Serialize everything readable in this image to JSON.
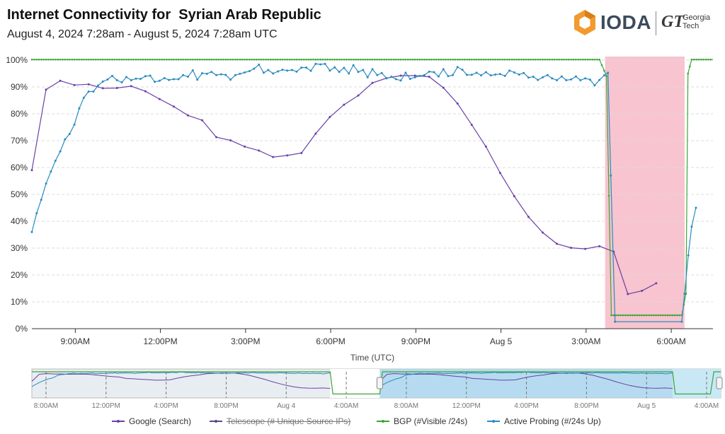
{
  "title": "Internet Connectivity for  Syrian Arab Republic",
  "subtitle": "August 4, 2024 7:28am - August 5, 2024 7:28am UTC",
  "logo": {
    "ioda": "IODA",
    "gt": "GT",
    "gt_name_1": "Georgia",
    "gt_name_2": "Tech"
  },
  "colors": {
    "google": "#6a3fa8",
    "telescope": "#5c4a82",
    "bgp": "#3ca535",
    "active_probing": "#2a8bc0",
    "outage_band": "#f7c4cf",
    "navigator_selection": "#a9d6ef"
  },
  "chart_data": {
    "type": "line",
    "title": "Internet Connectivity for  Syrian Arab Republic",
    "xlabel": "Time (UTC)",
    "ylabel": "",
    "ylim": [
      0,
      100
    ],
    "y_ticks": [
      "0%",
      "10%",
      "20%",
      "30%",
      "40%",
      "50%",
      "60%",
      "70%",
      "80%",
      "90%",
      "100%"
    ],
    "x_range_hours": [
      0,
      24
    ],
    "x_ticks": [
      {
        "h": 1.53,
        "label": "9:00AM"
      },
      {
        "h": 4.53,
        "label": "12:00PM"
      },
      {
        "h": 7.53,
        "label": "3:00PM"
      },
      {
        "h": 10.53,
        "label": "6:00PM"
      },
      {
        "h": 13.53,
        "label": "9:00PM"
      },
      {
        "h": 16.53,
        "label": "Aug 5"
      },
      {
        "h": 19.53,
        "label": "3:00AM"
      },
      {
        "h": 22.53,
        "label": "6:00AM"
      }
    ],
    "outage_band_hours": [
      20.2,
      23.0
    ],
    "grid": true,
    "legend": "bottom",
    "series": [
      {
        "key": "google",
        "name": "Google (Search)",
        "visible": true,
        "points": [
          [
            0.0,
            59
          ],
          [
            0.5,
            89
          ],
          [
            1.0,
            92.3
          ],
          [
            1.5,
            90.7
          ],
          [
            2.0,
            91
          ],
          [
            2.5,
            89.5
          ],
          [
            3.0,
            89.6
          ],
          [
            3.5,
            90.3
          ],
          [
            4.0,
            88.4
          ],
          [
            4.5,
            85.5
          ],
          [
            5.0,
            82.7
          ],
          [
            5.5,
            79.4
          ],
          [
            6.0,
            77.6
          ],
          [
            6.5,
            71.3
          ],
          [
            7.0,
            70.1
          ],
          [
            7.5,
            67.8
          ],
          [
            8.0,
            66.3
          ],
          [
            8.5,
            63.9
          ],
          [
            9.0,
            64.5
          ],
          [
            9.5,
            65.4
          ],
          [
            10.0,
            72.6
          ],
          [
            10.5,
            78.8
          ],
          [
            11.0,
            83.4
          ],
          [
            11.5,
            86.8
          ],
          [
            12.0,
            91.5
          ],
          [
            12.5,
            93.3
          ],
          [
            13.0,
            94.2
          ],
          [
            13.5,
            94.2
          ],
          [
            14.0,
            93.8
          ],
          [
            14.5,
            89.7
          ],
          [
            15.0,
            83.8
          ],
          [
            15.5,
            75.9
          ],
          [
            16.0,
            67.8
          ],
          [
            16.5,
            58
          ],
          [
            17.0,
            49.3
          ],
          [
            17.5,
            41.6
          ],
          [
            18.0,
            35.8
          ],
          [
            18.5,
            31.6
          ],
          [
            19.0,
            30.1
          ],
          [
            19.5,
            29.7
          ],
          [
            20.0,
            30.7
          ],
          [
            20.5,
            28.7
          ],
          [
            21.0,
            12.9
          ],
          [
            21.5,
            14.1
          ],
          [
            22.0,
            16.9
          ]
        ]
      },
      {
        "key": "telescope",
        "name": "Telescope (# Unique Source IPs)",
        "visible": false,
        "points": []
      },
      {
        "key": "bgp",
        "name": "BGP (#Visible /24s)",
        "visible": true,
        "points": [
          [
            0.0,
            100.2
          ],
          [
            20.0,
            100.2
          ],
          [
            20.25,
            94
          ],
          [
            20.42,
            5
          ],
          [
            22.9,
            5
          ],
          [
            23.05,
            13
          ],
          [
            23.12,
            95
          ],
          [
            23.25,
            100.2
          ],
          [
            24.0,
            100.2
          ]
        ]
      },
      {
        "key": "active_probing",
        "name": "Active Probing (#/24s Up)",
        "visible": true,
        "points": [
          [
            0.0,
            36
          ],
          [
            0.17,
            43
          ],
          [
            0.33,
            48
          ],
          [
            0.5,
            54
          ],
          [
            0.67,
            58.5
          ],
          [
            0.83,
            62.5
          ],
          [
            1.0,
            66
          ],
          [
            1.17,
            70.5
          ],
          [
            1.33,
            72.5
          ],
          [
            1.5,
            76
          ],
          [
            1.67,
            82
          ],
          [
            1.83,
            86
          ],
          [
            2.0,
            88.3
          ],
          [
            2.17,
            88.3
          ],
          [
            2.33,
            90.5
          ],
          [
            2.5,
            92
          ],
          [
            2.67,
            92.8
          ],
          [
            2.83,
            94.1
          ],
          [
            3.0,
            92.5
          ],
          [
            3.17,
            91.7
          ],
          [
            3.33,
            93.7
          ],
          [
            3.5,
            92.5
          ],
          [
            3.67,
            93.1
          ],
          [
            3.83,
            93
          ],
          [
            4.0,
            94
          ],
          [
            4.17,
            94.2
          ],
          [
            4.33,
            91.9
          ],
          [
            4.5,
            92.3
          ],
          [
            4.67,
            93.3
          ],
          [
            4.83,
            92.6
          ],
          [
            5.0,
            92.9
          ],
          [
            5.17,
            92.9
          ],
          [
            5.33,
            94.4
          ],
          [
            5.5,
            93.8
          ],
          [
            5.67,
            96.2
          ],
          [
            5.83,
            92.7
          ],
          [
            6.0,
            95.1
          ],
          [
            6.17,
            94.9
          ],
          [
            6.33,
            95.6
          ],
          [
            6.5,
            94.4
          ],
          [
            6.67,
            94.7
          ],
          [
            6.83,
            94.5
          ],
          [
            7.0,
            92.7
          ],
          [
            7.17,
            94.4
          ],
          [
            7.33,
            94.9
          ],
          [
            7.5,
            95.4
          ],
          [
            7.67,
            95.9
          ],
          [
            7.83,
            96.8
          ],
          [
            8.0,
            98.3
          ],
          [
            8.17,
            95.3
          ],
          [
            8.33,
            96.3
          ],
          [
            8.5,
            95
          ],
          [
            8.67,
            95.8
          ],
          [
            8.83,
            96.4
          ],
          [
            9.0,
            96.1
          ],
          [
            9.17,
            96.3
          ],
          [
            9.33,
            95.7
          ],
          [
            9.5,
            97.2
          ],
          [
            9.67,
            97.2
          ],
          [
            9.83,
            96
          ],
          [
            10.0,
            98.6
          ],
          [
            10.17,
            98.4
          ],
          [
            10.33,
            98.6
          ],
          [
            10.5,
            96.1
          ],
          [
            10.67,
            97.3
          ],
          [
            10.83,
            95.6
          ],
          [
            11.0,
            97.1
          ],
          [
            11.17,
            95
          ],
          [
            11.33,
            98.1
          ],
          [
            11.5,
            95.6
          ],
          [
            11.67,
            96.3
          ],
          [
            11.83,
            93.6
          ],
          [
            12.0,
            96.6
          ],
          [
            12.17,
            94.4
          ],
          [
            12.33,
            95.2
          ],
          [
            12.5,
            93.2
          ],
          [
            12.67,
            93.8
          ],
          [
            12.83,
            92.9
          ],
          [
            13.0,
            92.4
          ],
          [
            13.17,
            95.3
          ],
          [
            13.33,
            93
          ],
          [
            13.5,
            93.6
          ],
          [
            13.67,
            94.1
          ],
          [
            13.83,
            94.4
          ],
          [
            14.0,
            95.7
          ],
          [
            14.17,
            95.5
          ],
          [
            14.33,
            93.9
          ],
          [
            14.5,
            96.6
          ],
          [
            14.67,
            94
          ],
          [
            14.83,
            94.4
          ],
          [
            15.0,
            97.4
          ],
          [
            15.17,
            96.4
          ],
          [
            15.33,
            94.5
          ],
          [
            15.5,
            94.5
          ],
          [
            15.67,
            95.3
          ],
          [
            15.83,
            94.3
          ],
          [
            16.0,
            95.5
          ],
          [
            16.17,
            94.3
          ],
          [
            16.33,
            94.6
          ],
          [
            16.5,
            94.8
          ],
          [
            16.67,
            94.1
          ],
          [
            16.83,
            96.1
          ],
          [
            17.0,
            95.4
          ],
          [
            17.17,
            94.6
          ],
          [
            17.33,
            95.2
          ],
          [
            17.5,
            93.5
          ],
          [
            17.67,
            93.8
          ],
          [
            17.83,
            92.6
          ],
          [
            18.0,
            93.6
          ],
          [
            18.17,
            94.4
          ],
          [
            18.33,
            93.2
          ],
          [
            18.5,
            92.5
          ],
          [
            18.67,
            93.9
          ],
          [
            18.83,
            92.5
          ],
          [
            19.0,
            92.8
          ],
          [
            19.17,
            93.9
          ],
          [
            19.33,
            92.5
          ],
          [
            19.5,
            93.2
          ],
          [
            19.67,
            92.7
          ],
          [
            19.83,
            90.6
          ],
          [
            20.0,
            92.6
          ],
          [
            20.17,
            94.3
          ],
          [
            20.3,
            95.3
          ],
          [
            20.4,
            57
          ],
          [
            20.55,
            2.6
          ],
          [
            22.9,
            2.6
          ],
          [
            23.0,
            13
          ],
          [
            23.13,
            27.3
          ],
          [
            23.25,
            38
          ],
          [
            23.4,
            45
          ]
        ]
      }
    ],
    "navigator": {
      "x_ticks": [
        "8:00AM",
        "12:00PM",
        "4:00PM",
        "8:00PM",
        "Aug 4",
        "4:00AM",
        "8:00AM",
        "12:00PM",
        "4:00PM",
        "8:00PM",
        "Aug 5",
        "4:00AM"
      ]
    }
  }
}
